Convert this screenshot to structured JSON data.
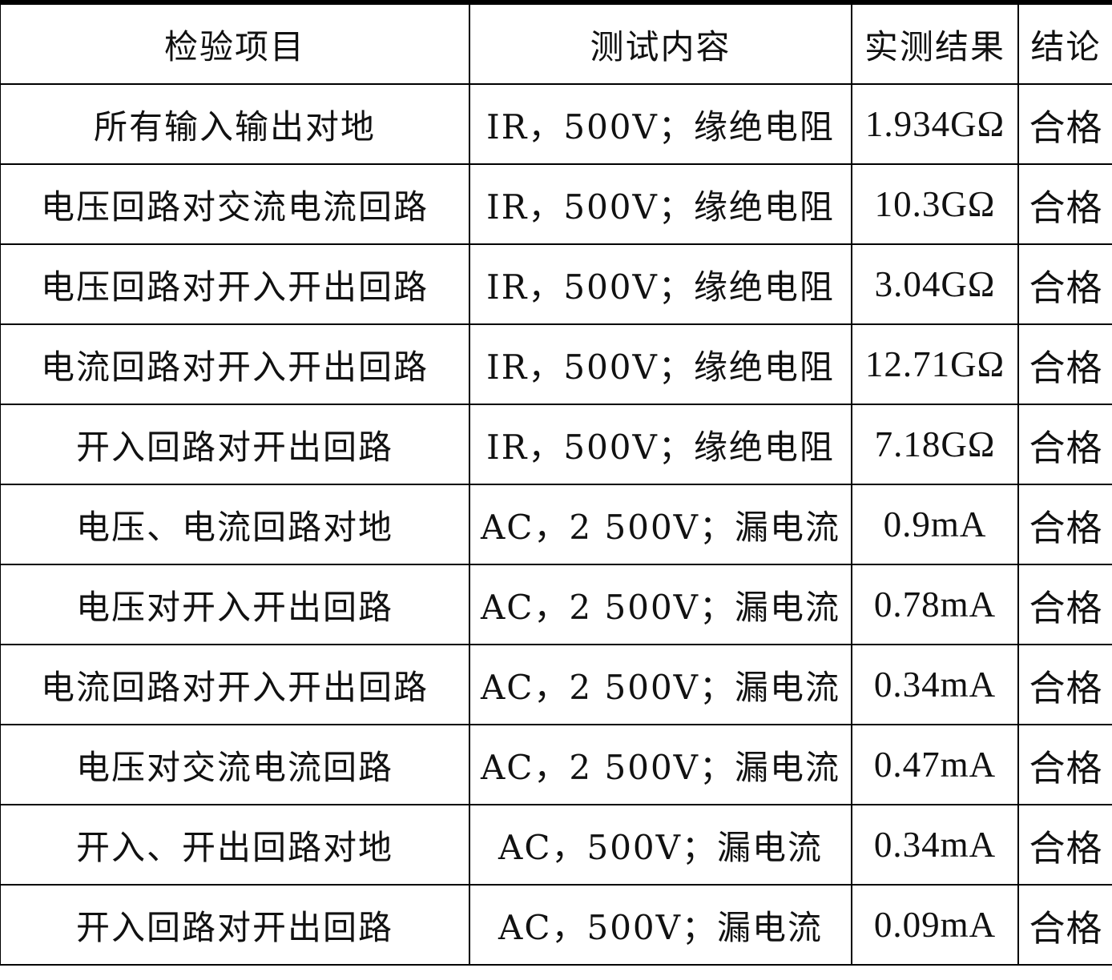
{
  "headers": [
    "检验项目",
    "测试内容",
    "实测结果",
    "结论"
  ],
  "rows": [
    [
      "所有输入输出对地",
      "IR，500V；缘绝电阻",
      "1.934GΩ",
      "合格"
    ],
    [
      "电压回路对交流电流回路",
      "IR，500V；缘绝电阻",
      "10.3GΩ",
      "合格"
    ],
    [
      "电压回路对开入开出回路",
      "IR，500V；缘绝电阻",
      "3.04GΩ",
      "合格"
    ],
    [
      "电流回路对开入开出回路",
      "IR，500V；缘绝电阻",
      "12.71GΩ",
      "合格"
    ],
    [
      "开入回路对开出回路",
      "IR，500V；缘绝电阻",
      "7.18GΩ",
      "合格"
    ],
    [
      "电压、电流回路对地",
      "AC，2 500V；漏电流",
      "0.9mA",
      "合格"
    ],
    [
      "电压对开入开出回路",
      "AC，2 500V；漏电流",
      "0.78mA",
      "合格"
    ],
    [
      "电流回路对开入开出回路",
      "AC，2 500V；漏电流",
      "0.34mA",
      "合格"
    ],
    [
      "电压对交流电流回路",
      "AC，2 500V；漏电流",
      "0.47mA",
      "合格"
    ],
    [
      "开入、开出回路对地",
      "AC，500V；漏电流",
      "0.34mA",
      "合格"
    ],
    [
      "开入回路对开出回路",
      "AC，500V；漏电流",
      "0.09mA",
      "合格"
    ]
  ]
}
